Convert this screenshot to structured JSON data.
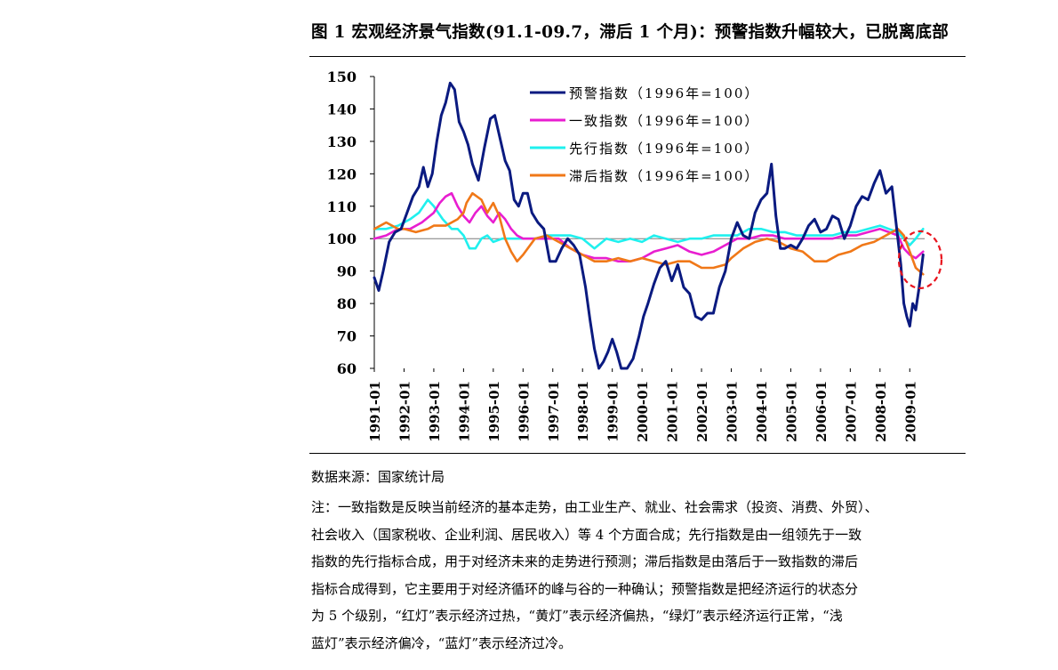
{
  "figure": {
    "title": "图 1  宏观经济景气指数(91.1-09.7，滞后 1 个月)：预警指数升幅较大，已脱离底部"
  },
  "source": "数据来源：国家统计局",
  "note_lines": [
    "注：一致指数是反映当前经济的基本走势，由工业生产、就业、社会需求（投资、消费、外贸）、",
    "社会收入（国家税收、企业利润、居民收入）等 4 个方面合成；先行指数是由一组领先于一致",
    "指数的先行指标合成，用于对经济未来的走势进行预测；滞后指数是由落后于一致指数的滞后",
    "指标合成得到，它主要用于对经济循环的峰与谷的一种确认；预警指数是把经济运行的状态分",
    "为 5 个级别，“红灯”表示经济过热，“黄灯”表示经济偏热，“绿灯”表示经济运行正常，“浅",
    "蓝灯”表示经济偏冷，“蓝灯”表示经济过冷。"
  ],
  "chart_data": {
    "type": "line",
    "ylim": [
      60,
      150
    ],
    "yticks": [
      60,
      70,
      80,
      90,
      100,
      110,
      120,
      130,
      140,
      150
    ],
    "xlim": [
      1991.0,
      2009.5
    ],
    "xtick_labels": [
      "1991-01",
      "1992-01",
      "1993-01",
      "1994-01",
      "1995-01",
      "1996-01",
      "1997-01",
      "1998-01",
      "1999-01",
      "2000-01",
      "2001-01",
      "2002-01",
      "2003-01",
      "2004-01",
      "2005-01",
      "2006-01",
      "2007-01",
      "2008-01",
      "2009-01"
    ],
    "reference_line": 100,
    "legend_position": "top-center",
    "grid": false,
    "annotation": "red dashed circle around 2009 endpoints",
    "series": [
      {
        "name": "预警指数（1996年=100）",
        "color": "#0a1a80",
        "x": [
          1991.0,
          1991.15,
          1991.3,
          1991.5,
          1991.7,
          1991.9,
          1992.1,
          1992.3,
          1992.5,
          1992.65,
          1992.8,
          1992.95,
          1993.1,
          1993.25,
          1993.4,
          1993.55,
          1993.7,
          1993.85,
          1994.0,
          1994.15,
          1994.3,
          1994.5,
          1994.7,
          1994.9,
          1995.05,
          1995.2,
          1995.4,
          1995.55,
          1995.7,
          1995.85,
          1996.0,
          1996.15,
          1996.3,
          1996.5,
          1996.7,
          1996.9,
          1997.1,
          1997.3,
          1997.5,
          1997.7,
          1997.9,
          1998.1,
          1998.25,
          1998.4,
          1998.55,
          1998.7,
          1998.85,
          1999.0,
          1999.15,
          1999.3,
          1999.5,
          1999.7,
          1999.9,
          2000.05,
          2000.2,
          2000.4,
          2000.6,
          2000.8,
          2001.0,
          2001.2,
          2001.4,
          2001.6,
          2001.8,
          2002.0,
          2002.2,
          2002.4,
          2002.6,
          2002.8,
          2003.0,
          2003.2,
          2003.4,
          2003.6,
          2003.8,
          2004.0,
          2004.2,
          2004.35,
          2004.5,
          2004.65,
          2004.8,
          2005.0,
          2005.2,
          2005.4,
          2005.6,
          2005.8,
          2006.0,
          2006.2,
          2006.4,
          2006.6,
          2006.8,
          2007.0,
          2007.2,
          2007.4,
          2007.6,
          2007.8,
          2008.0,
          2008.2,
          2008.4,
          2008.55,
          2008.7,
          2008.8,
          2008.9,
          2009.0,
          2009.1,
          2009.2,
          2009.3,
          2009.45
        ],
        "y": [
          88,
          84,
          90,
          99,
          102,
          103,
          108,
          113,
          116,
          122,
          116,
          120,
          130,
          138,
          142,
          148,
          146,
          136,
          133,
          129,
          123,
          118,
          128,
          137,
          138,
          132,
          124,
          121,
          112,
          110,
          114,
          114,
          108,
          105,
          103,
          93,
          93,
          97,
          100,
          98,
          95,
          85,
          75,
          66,
          60,
          62,
          65,
          69,
          65,
          60,
          60,
          63,
          70,
          76,
          80,
          86,
          91,
          93,
          87,
          92,
          85,
          83,
          76,
          75,
          77,
          77,
          85,
          90,
          100,
          105,
          101,
          100,
          108,
          112,
          114,
          123,
          107,
          97,
          97,
          98,
          97,
          100,
          104,
          106,
          102,
          103,
          107,
          106,
          100,
          104,
          110,
          113,
          112,
          117,
          121,
          114,
          116,
          104,
          92,
          80,
          76,
          73,
          80,
          78,
          84,
          95
        ]
      },
      {
        "name": "一致指数（1996年=100）",
        "color": "#e81ed0",
        "x": [
          1991.0,
          1991.4,
          1991.8,
          1992.2,
          1992.6,
          1993.0,
          1993.2,
          1993.4,
          1993.6,
          1993.8,
          1994.0,
          1994.2,
          1994.4,
          1994.6,
          1994.8,
          1995.0,
          1995.2,
          1995.4,
          1995.6,
          1995.8,
          1996.0,
          1996.4,
          1996.8,
          1997.2,
          1997.6,
          1998.0,
          1998.4,
          1998.8,
          1999.2,
          1999.6,
          2000.0,
          2000.4,
          2000.8,
          2001.2,
          2001.6,
          2002.0,
          2002.4,
          2002.8,
          2003.2,
          2003.6,
          2004.0,
          2004.4,
          2004.8,
          2005.2,
          2005.6,
          2006.0,
          2006.4,
          2006.8,
          2007.2,
          2007.6,
          2008.0,
          2008.3,
          2008.6,
          2008.8,
          2009.0,
          2009.2,
          2009.45
        ],
        "y": [
          100,
          101,
          103,
          103,
          105,
          108,
          111,
          113,
          114,
          110,
          107,
          105,
          108,
          110,
          107,
          105,
          108,
          106,
          103,
          101,
          100,
          100,
          100,
          100,
          97,
          95,
          94,
          94,
          93,
          93,
          94,
          96,
          97,
          98,
          96,
          95,
          96,
          98,
          100,
          100,
          101,
          101,
          100,
          100,
          100,
          100,
          100,
          101,
          101,
          102,
          103,
          102,
          101,
          97,
          95,
          94,
          96
        ]
      },
      {
        "name": "先行指数（1996年=100）",
        "color": "#20f0ee",
        "x": [
          1991.0,
          1991.4,
          1991.8,
          1992.2,
          1992.5,
          1992.8,
          1993.0,
          1993.3,
          1993.6,
          1993.8,
          1994.0,
          1994.2,
          1994.4,
          1994.6,
          1994.8,
          1995.0,
          1995.3,
          1995.6,
          1996.0,
          1996.4,
          1996.8,
          1997.2,
          1997.6,
          1998.0,
          1998.4,
          1998.8,
          1999.2,
          1999.6,
          2000.0,
          2000.4,
          2000.8,
          2001.2,
          2001.6,
          2002.0,
          2002.4,
          2002.8,
          2003.2,
          2003.6,
          2004.0,
          2004.4,
          2004.8,
          2005.2,
          2005.6,
          2006.0,
          2006.4,
          2006.8,
          2007.2,
          2007.6,
          2008.0,
          2008.3,
          2008.6,
          2008.8,
          2009.0,
          2009.2,
          2009.45
        ],
        "y": [
          103,
          103,
          104,
          106,
          108,
          112,
          110,
          106,
          103,
          103,
          101,
          97,
          97,
          100,
          101,
          99,
          100,
          100,
          100,
          100,
          101,
          101,
          101,
          100,
          97,
          100,
          99,
          100,
          99,
          101,
          100,
          99,
          100,
          100,
          101,
          101,
          101,
          103,
          103,
          102,
          102,
          101,
          101,
          101,
          101,
          102,
          102,
          103,
          104,
          103,
          102,
          100,
          98,
          100,
          103
        ]
      },
      {
        "name": "滞后指数（1996年=100）",
        "color": "#f07818",
        "x": [
          1991.0,
          1991.4,
          1991.8,
          1992.0,
          1992.4,
          1992.8,
          1993.0,
          1993.4,
          1993.8,
          1994.0,
          1994.1,
          1994.3,
          1994.6,
          1994.8,
          1995.0,
          1995.2,
          1995.4,
          1995.6,
          1995.8,
          1996.0,
          1996.4,
          1996.8,
          1997.2,
          1997.6,
          1998.0,
          1998.4,
          1998.8,
          1999.2,
          1999.6,
          2000.0,
          2000.4,
          2000.8,
          2001.2,
          2001.6,
          2002.0,
          2002.4,
          2002.8,
          2003.0,
          2003.4,
          2003.8,
          2004.2,
          2004.6,
          2005.0,
          2005.4,
          2005.8,
          2006.2,
          2006.6,
          2007.0,
          2007.4,
          2007.8,
          2008.2,
          2008.4,
          2008.6,
          2008.8,
          2009.0,
          2009.2,
          2009.45
        ],
        "y": [
          103,
          105,
          103,
          103,
          102,
          103,
          104,
          104,
          106,
          108,
          111,
          114,
          112,
          108,
          111,
          107,
          100,
          96,
          93,
          95,
          100,
          101,
          99,
          97,
          95,
          93,
          93,
          94,
          93,
          94,
          93,
          92,
          93,
          93,
          91,
          91,
          92,
          94,
          97,
          99,
          100,
          99,
          97,
          96,
          93,
          93,
          95,
          96,
          98,
          99,
          101,
          102,
          103,
          101,
          96,
          91,
          89
        ]
      }
    ]
  }
}
